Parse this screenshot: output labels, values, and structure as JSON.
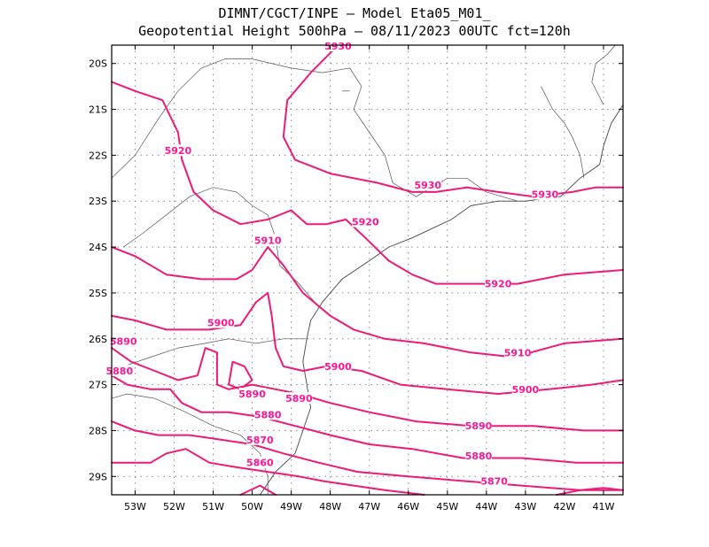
{
  "header": {
    "line1": "DIMNT/CGCT/INPE –  Model Eta05_M01_",
    "line2": "Geopotential Height 500hPa –  08/11/2023 00UTC fct=120h"
  },
  "map": {
    "lon_range": [
      -53.6,
      -40.5
    ],
    "lat_range": [
      -29.4,
      -19.6
    ],
    "lat_ticks": [
      {
        "value": -20,
        "label": "20S"
      },
      {
        "value": -21,
        "label": "21S"
      },
      {
        "value": -22,
        "label": "22S"
      },
      {
        "value": -23,
        "label": "23S"
      },
      {
        "value": -24,
        "label": "24S"
      },
      {
        "value": -25,
        "label": "25S"
      },
      {
        "value": -26,
        "label": "26S"
      },
      {
        "value": -27,
        "label": "27S"
      },
      {
        "value": -28,
        "label": "28S"
      },
      {
        "value": -29,
        "label": "29S"
      }
    ],
    "lon_ticks": [
      {
        "value": -53,
        "label": "53W"
      },
      {
        "value": -52,
        "label": "52W"
      },
      {
        "value": -51,
        "label": "51W"
      },
      {
        "value": -50,
        "label": "50W"
      },
      {
        "value": -49,
        "label": "49W"
      },
      {
        "value": -48,
        "label": "48W"
      },
      {
        "value": -47,
        "label": "47W"
      },
      {
        "value": -46,
        "label": "46W"
      },
      {
        "value": -45,
        "label": "45W"
      },
      {
        "value": -44,
        "label": "44W"
      },
      {
        "value": -43,
        "label": "43W"
      },
      {
        "value": -42,
        "label": "42W"
      },
      {
        "value": -41,
        "label": "41W"
      }
    ],
    "grid": true,
    "contour_color": "#ee1a78",
    "contour_label_color": "#ff1493"
  },
  "contours": [
    {
      "level": 5930,
      "points": [
        [
          -47.8,
          -19.6
        ],
        [
          -48.5,
          -20.2
        ],
        [
          -49.1,
          -20.8
        ],
        [
          -49.2,
          -21.6
        ],
        [
          -48.9,
          -22.1
        ],
        [
          -48.0,
          -22.4
        ],
        [
          -46.8,
          -22.6
        ],
        [
          -45.9,
          -22.8
        ],
        [
          -45.3,
          -22.8
        ],
        [
          -44.5,
          -22.7
        ],
        [
          -43.7,
          -22.8
        ],
        [
          -42.8,
          -22.9
        ],
        [
          -41.8,
          -22.8
        ],
        [
          -41.2,
          -22.7
        ],
        [
          -40.5,
          -22.7
        ]
      ],
      "labels": [
        {
          "text": "5930",
          "lon": -47.8,
          "lat": -19.62
        },
        {
          "text": "5930",
          "lon": -45.5,
          "lat": -22.65
        },
        {
          "text": "5930",
          "lon": -42.5,
          "lat": -22.85
        }
      ]
    },
    {
      "level": 5920,
      "points": [
        [
          -53.6,
          -20.4
        ],
        [
          -53.0,
          -20.6
        ],
        [
          -52.3,
          -20.8
        ],
        [
          -51.9,
          -21.5
        ],
        [
          -51.8,
          -22.1
        ],
        [
          -51.5,
          -22.8
        ],
        [
          -51.0,
          -23.2
        ],
        [
          -50.3,
          -23.5
        ],
        [
          -49.6,
          -23.4
        ],
        [
          -49.0,
          -23.2
        ],
        [
          -48.6,
          -23.5
        ],
        [
          -48.1,
          -23.5
        ],
        [
          -47.6,
          -23.4
        ],
        [
          -47.1,
          -23.8
        ],
        [
          -46.5,
          -24.3
        ],
        [
          -45.9,
          -24.6
        ],
        [
          -45.3,
          -24.8
        ],
        [
          -44.3,
          -24.8
        ],
        [
          -43.2,
          -24.8
        ],
        [
          -42.0,
          -24.6
        ],
        [
          -40.5,
          -24.5
        ]
      ],
      "labels": [
        {
          "text": "5920",
          "lon": -51.9,
          "lat": -21.9
        },
        {
          "text": "5920",
          "lon": -47.1,
          "lat": -23.45
        },
        {
          "text": "5920",
          "lon": -43.7,
          "lat": -24.8
        }
      ]
    },
    {
      "level": 5910,
      "points": [
        [
          -53.6,
          -24.0
        ],
        [
          -53.0,
          -24.2
        ],
        [
          -52.2,
          -24.6
        ],
        [
          -51.3,
          -24.7
        ],
        [
          -50.4,
          -24.7
        ],
        [
          -50.0,
          -24.5
        ],
        [
          -49.6,
          -24.0
        ],
        [
          -49.2,
          -24.4
        ],
        [
          -48.7,
          -25.0
        ],
        [
          -48.0,
          -25.5
        ],
        [
          -47.4,
          -25.8
        ],
        [
          -46.6,
          -26.0
        ],
        [
          -45.6,
          -26.1
        ],
        [
          -44.4,
          -26.3
        ],
        [
          -43.3,
          -26.4
        ],
        [
          -42.0,
          -26.1
        ],
        [
          -40.5,
          -26.0
        ]
      ],
      "labels": [
        {
          "text": "5910",
          "lon": -49.6,
          "lat": -23.85
        },
        {
          "text": "5910",
          "lon": -43.2,
          "lat": -26.3
        }
      ]
    },
    {
      "level": 5900,
      "points": [
        [
          -53.6,
          -25.5
        ],
        [
          -53.0,
          -25.6
        ],
        [
          -52.2,
          -25.8
        ],
        [
          -51.1,
          -25.8
        ],
        [
          -50.3,
          -25.7
        ],
        [
          -49.9,
          -25.2
        ],
        [
          -49.6,
          -25.0
        ],
        [
          -49.5,
          -25.5
        ],
        [
          -49.4,
          -26.2
        ],
        [
          -49.2,
          -26.6
        ],
        [
          -48.7,
          -26.7
        ],
        [
          -48.1,
          -26.6
        ],
        [
          -47.2,
          -26.7
        ],
        [
          -46.2,
          -27.0
        ],
        [
          -45.0,
          -27.1
        ],
        [
          -43.7,
          -27.2
        ],
        [
          -42.4,
          -27.1
        ],
        [
          -41.3,
          -27.0
        ],
        [
          -40.5,
          -26.9
        ]
      ],
      "labels": [
        {
          "text": "5900",
          "lon": -50.8,
          "lat": -25.65
        },
        {
          "text": "5900",
          "lon": -47.8,
          "lat": -26.6
        },
        {
          "text": "5900",
          "lon": -43.0,
          "lat": -27.1
        }
      ]
    },
    {
      "level": 5890,
      "points": [
        [
          -53.6,
          -26.2
        ],
        [
          -53.1,
          -26.5
        ],
        [
          -52.5,
          -26.7
        ],
        [
          -51.9,
          -26.9
        ],
        [
          -51.4,
          -26.8
        ],
        [
          -51.2,
          -26.2
        ],
        [
          -50.9,
          -26.3
        ],
        [
          -50.9,
          -27.0
        ],
        [
          -50.6,
          -27.1
        ],
        [
          -50.0,
          -27.0
        ],
        [
          -49.4,
          -27.1
        ],
        [
          -48.8,
          -27.2
        ],
        [
          -48.0,
          -27.4
        ],
        [
          -47.0,
          -27.6
        ],
        [
          -45.8,
          -27.8
        ],
        [
          -44.4,
          -27.9
        ],
        [
          -42.8,
          -27.9
        ],
        [
          -41.5,
          -28.0
        ],
        [
          -40.5,
          -28.0
        ]
      ],
      "labels": [
        {
          "text": "5890",
          "lon": -53.3,
          "lat": -26.05
        },
        {
          "text": "5890",
          "lon": -48.8,
          "lat": -27.3
        },
        {
          "text": "5890",
          "lon": -44.2,
          "lat": -27.9
        }
      ]
    },
    {
      "level": 5890,
      "points": [
        [
          -50.6,
          -27.0
        ],
        [
          -50.5,
          -26.5
        ],
        [
          -50.2,
          -26.6
        ],
        [
          -50.0,
          -26.9
        ],
        [
          -50.3,
          -27.1
        ],
        [
          -50.6,
          -27.0
        ]
      ],
      "labels": [
        {
          "text": "5890",
          "lon": -50.0,
          "lat": -27.2
        }
      ]
    },
    {
      "level": 5880,
      "points": [
        [
          -53.6,
          -26.8
        ],
        [
          -53.2,
          -27.0
        ],
        [
          -52.6,
          -27.1
        ],
        [
          -52.1,
          -27.1
        ],
        [
          -51.8,
          -27.4
        ],
        [
          -51.3,
          -27.6
        ],
        [
          -50.6,
          -27.6
        ],
        [
          -49.8,
          -27.7
        ],
        [
          -48.9,
          -27.9
        ],
        [
          -48.0,
          -28.1
        ],
        [
          -47.0,
          -28.3
        ],
        [
          -45.9,
          -28.4
        ],
        [
          -44.6,
          -28.6
        ],
        [
          -43.1,
          -28.6
        ],
        [
          -41.7,
          -28.7
        ],
        [
          -40.5,
          -28.7
        ]
      ],
      "labels": [
        {
          "text": "5880",
          "lon": -53.4,
          "lat": -26.7
        },
        {
          "text": "5880",
          "lon": -49.6,
          "lat": -27.65
        },
        {
          "text": "5880",
          "lon": -44.2,
          "lat": -28.55
        }
      ]
    },
    {
      "level": 5870,
      "points": [
        [
          -53.6,
          -27.8
        ],
        [
          -53.0,
          -28.0
        ],
        [
          -52.4,
          -28.1
        ],
        [
          -51.6,
          -28.1
        ],
        [
          -50.8,
          -28.2
        ],
        [
          -50.0,
          -28.3
        ],
        [
          -49.2,
          -28.5
        ],
        [
          -48.3,
          -28.7
        ],
        [
          -47.3,
          -28.9
        ],
        [
          -46.0,
          -29.0
        ],
        [
          -44.6,
          -29.1
        ],
        [
          -43.1,
          -29.2
        ],
        [
          -41.6,
          -29.3
        ],
        [
          -40.5,
          -29.3
        ]
      ],
      "labels": [
        {
          "text": "5870",
          "lon": -49.8,
          "lat": -28.2
        },
        {
          "text": "5870",
          "lon": -43.8,
          "lat": -29.1
        }
      ]
    },
    {
      "level": 5860,
      "points": [
        [
          -53.6,
          -28.7
        ],
        [
          -53.2,
          -28.7
        ],
        [
          -52.6,
          -28.7
        ],
        [
          -52.2,
          -28.5
        ],
        [
          -51.7,
          -28.4
        ],
        [
          -51.1,
          -28.7
        ],
        [
          -50.4,
          -28.8
        ],
        [
          -49.6,
          -28.9
        ],
        [
          -48.8,
          -29.0
        ],
        [
          -48.2,
          -29.1
        ],
        [
          -47.4,
          -29.2
        ],
        [
          -46.6,
          -29.3
        ],
        [
          -45.6,
          -29.4
        ]
      ],
      "labels": [
        {
          "text": "5860",
          "lon": -49.8,
          "lat": -28.7
        }
      ]
    },
    {
      "level": 5850,
      "points": [
        [
          -50.3,
          -29.4
        ],
        [
          -49.8,
          -29.2
        ],
        [
          -49.4,
          -29.4
        ]
      ],
      "labels": []
    },
    {
      "level": 5850,
      "points": [
        [
          -42.2,
          -29.4
        ],
        [
          -41.6,
          -29.3
        ],
        [
          -41.0,
          -29.25
        ],
        [
          -40.5,
          -29.3
        ]
      ],
      "labels": []
    }
  ],
  "coastline": [
    [
      -40.5,
      -20.9
    ],
    [
      -40.8,
      -21.3
    ],
    [
      -41.0,
      -21.8
    ],
    [
      -41.1,
      -22.2
    ],
    [
      -41.6,
      -22.5
    ],
    [
      -42.1,
      -22.9
    ],
    [
      -43.0,
      -23.0
    ],
    [
      -43.7,
      -23.0
    ],
    [
      -44.4,
      -23.1
    ],
    [
      -44.9,
      -23.4
    ],
    [
      -45.4,
      -23.6
    ],
    [
      -45.9,
      -23.8
    ],
    [
      -46.5,
      -24.0
    ],
    [
      -47.0,
      -24.3
    ],
    [
      -47.7,
      -24.7
    ],
    [
      -48.2,
      -25.2
    ],
    [
      -48.5,
      -25.6
    ],
    [
      -48.6,
      -26.0
    ],
    [
      -48.7,
      -26.5
    ],
    [
      -48.6,
      -27.0
    ],
    [
      -48.5,
      -27.5
    ],
    [
      -48.7,
      -28.0
    ],
    [
      -48.9,
      -28.5
    ],
    [
      -49.4,
      -28.9
    ],
    [
      -49.8,
      -29.4
    ]
  ],
  "borders": [
    [
      [
        -53.6,
        -26.7
      ],
      [
        -53.3,
        -26.6
      ],
      [
        -52.6,
        -26.4
      ],
      [
        -51.9,
        -26.2
      ],
      [
        -51.2,
        -26.1
      ],
      [
        -50.6,
        -26.0
      ],
      [
        -49.9,
        -26.1
      ],
      [
        -49.2,
        -26.0
      ],
      [
        -48.6,
        -26.0
      ]
    ],
    [
      [
        -53.6,
        -27.3
      ],
      [
        -53.2,
        -27.2
      ],
      [
        -52.5,
        -27.3
      ],
      [
        -51.7,
        -27.6
      ],
      [
        -51.0,
        -27.9
      ],
      [
        -50.3,
        -28.1
      ],
      [
        -49.8,
        -28.5
      ],
      [
        -49.6,
        -29.0
      ],
      [
        -49.6,
        -29.4
      ]
    ],
    [
      [
        -53.3,
        -24.0
      ],
      [
        -52.8,
        -23.7
      ],
      [
        -52.2,
        -23.3
      ],
      [
        -51.6,
        -22.9
      ],
      [
        -51.0,
        -22.7
      ],
      [
        -50.4,
        -22.8
      ],
      [
        -50.0,
        -23.1
      ],
      [
        -49.6,
        -23.3
      ],
      [
        -49.4,
        -23.8
      ],
      [
        -49.3,
        -24.4
      ],
      [
        -48.8,
        -24.8
      ],
      [
        -48.4,
        -25.2
      ]
    ],
    [
      [
        -53.6,
        -22.5
      ],
      [
        -53.0,
        -22.0
      ],
      [
        -52.4,
        -21.2
      ],
      [
        -51.9,
        -20.6
      ],
      [
        -51.3,
        -20.1
      ],
      [
        -50.7,
        -19.9
      ],
      [
        -50.0,
        -19.9
      ]
    ],
    [
      [
        -50.0,
        -19.9
      ],
      [
        -49.0,
        -20.1
      ],
      [
        -48.2,
        -20.2
      ],
      [
        -47.5,
        -20.1
      ],
      [
        -47.2,
        -20.5
      ],
      [
        -47.4,
        -21.0
      ],
      [
        -47.0,
        -21.5
      ],
      [
        -46.6,
        -22.0
      ],
      [
        -46.4,
        -22.6
      ],
      [
        -45.8,
        -22.9
      ],
      [
        -45.0,
        -22.5
      ],
      [
        -44.5,
        -22.5
      ],
      [
        -44.0,
        -22.8
      ],
      [
        -43.2,
        -23.0
      ]
    ],
    [
      [
        -47.7,
        -20.6
      ],
      [
        -47.5,
        -20.6
      ]
    ],
    [
      [
        -42.6,
        -20.5
      ],
      [
        -42.3,
        -21.0
      ],
      [
        -42.0,
        -21.3
      ],
      [
        -41.8,
        -21.6
      ],
      [
        -41.6,
        -22.0
      ],
      [
        -41.5,
        -22.5
      ]
    ],
    [
      [
        -41.0,
        -20.9
      ],
      [
        -41.3,
        -20.4
      ],
      [
        -41.2,
        -20.0
      ],
      [
        -40.9,
        -19.8
      ],
      [
        -40.7,
        -19.6
      ]
    ]
  ]
}
